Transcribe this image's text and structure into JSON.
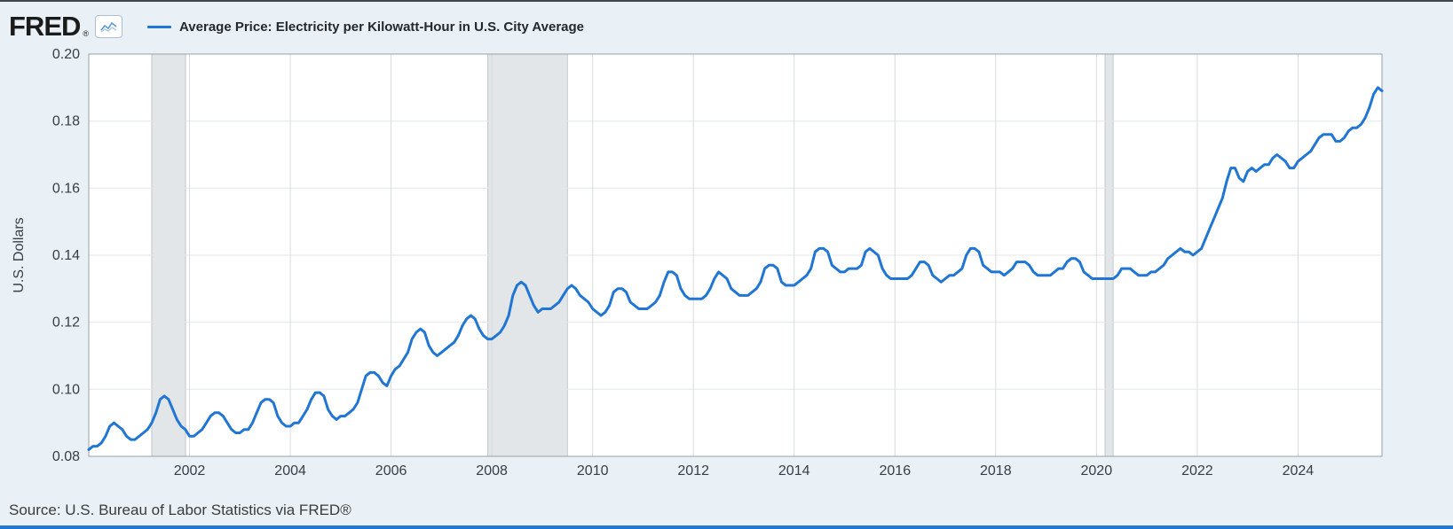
{
  "header": {
    "logo": "FRED",
    "registered": "®",
    "legend_label": "Average Price: Electricity per Kilowatt-Hour in U.S. City Average"
  },
  "footer": {
    "source": "Source: U.S. Bureau of Labor Statistics via FRED®"
  },
  "chart_data": {
    "type": "line",
    "title": "Average Price: Electricity per Kilowatt-Hour in U.S. City Average",
    "xlabel": "",
    "ylabel": "U.S. Dollars",
    "legend_position": "top",
    "grid": true,
    "line_color": "#2076d2",
    "band_color": "#e3e6e9",
    "xlim": [
      2000.0,
      2025.6667
    ],
    "ylim": [
      0.08,
      0.2
    ],
    "x_ticks": [
      2002,
      2004,
      2006,
      2008,
      2010,
      2012,
      2014,
      2016,
      2018,
      2020,
      2022,
      2024
    ],
    "y_ticks": [
      0.08,
      0.1,
      0.12,
      0.14,
      0.16,
      0.18,
      0.2
    ],
    "recession_bands": [
      [
        2001.25,
        2001.92
      ],
      [
        2007.92,
        2009.5
      ],
      [
        2020.17,
        2020.33
      ]
    ],
    "x_start": 2000.0,
    "x_step_years": 0.0833333,
    "values": [
      0.082,
      0.083,
      0.083,
      0.084,
      0.086,
      0.089,
      0.09,
      0.089,
      0.088,
      0.086,
      0.085,
      0.085,
      0.086,
      0.087,
      0.088,
      0.09,
      0.093,
      0.097,
      0.098,
      0.097,
      0.094,
      0.091,
      0.089,
      0.088,
      0.086,
      0.086,
      0.087,
      0.088,
      0.09,
      0.092,
      0.093,
      0.093,
      0.092,
      0.09,
      0.088,
      0.087,
      0.087,
      0.088,
      0.088,
      0.09,
      0.093,
      0.096,
      0.097,
      0.097,
      0.096,
      0.092,
      0.09,
      0.089,
      0.089,
      0.09,
      0.09,
      0.092,
      0.094,
      0.097,
      0.099,
      0.099,
      0.098,
      0.094,
      0.092,
      0.091,
      0.092,
      0.092,
      0.093,
      0.094,
      0.096,
      0.1,
      0.104,
      0.105,
      0.105,
      0.104,
      0.102,
      0.101,
      0.104,
      0.106,
      0.107,
      0.109,
      0.111,
      0.115,
      0.117,
      0.118,
      0.117,
      0.113,
      0.111,
      0.11,
      0.111,
      0.112,
      0.113,
      0.114,
      0.116,
      0.119,
      0.121,
      0.122,
      0.121,
      0.118,
      0.116,
      0.115,
      0.115,
      0.116,
      0.117,
      0.119,
      0.122,
      0.128,
      0.131,
      0.132,
      0.131,
      0.128,
      0.125,
      0.123,
      0.124,
      0.124,
      0.124,
      0.125,
      0.126,
      0.128,
      0.13,
      0.131,
      0.13,
      0.128,
      0.127,
      0.126,
      0.124,
      0.123,
      0.122,
      0.123,
      0.125,
      0.129,
      0.13,
      0.13,
      0.129,
      0.126,
      0.125,
      0.124,
      0.124,
      0.124,
      0.125,
      0.126,
      0.128,
      0.132,
      0.135,
      0.135,
      0.134,
      0.13,
      0.128,
      0.127,
      0.127,
      0.127,
      0.127,
      0.128,
      0.13,
      0.133,
      0.135,
      0.134,
      0.133,
      0.13,
      0.129,
      0.128,
      0.128,
      0.128,
      0.129,
      0.13,
      0.132,
      0.136,
      0.137,
      0.137,
      0.136,
      0.132,
      0.131,
      0.131,
      0.131,
      0.132,
      0.133,
      0.134,
      0.136,
      0.141,
      0.142,
      0.142,
      0.141,
      0.137,
      0.136,
      0.135,
      0.135,
      0.136,
      0.136,
      0.136,
      0.137,
      0.141,
      0.142,
      0.141,
      0.14,
      0.136,
      0.134,
      0.133,
      0.133,
      0.133,
      0.133,
      0.133,
      0.134,
      0.136,
      0.138,
      0.138,
      0.137,
      0.134,
      0.133,
      0.132,
      0.133,
      0.134,
      0.134,
      0.135,
      0.136,
      0.14,
      0.142,
      0.142,
      0.141,
      0.137,
      0.136,
      0.135,
      0.135,
      0.135,
      0.134,
      0.135,
      0.136,
      0.138,
      0.138,
      0.138,
      0.137,
      0.135,
      0.134,
      0.134,
      0.134,
      0.134,
      0.135,
      0.136,
      0.136,
      0.138,
      0.139,
      0.139,
      0.138,
      0.135,
      0.134,
      0.133,
      0.133,
      0.133,
      0.133,
      0.133,
      0.133,
      0.134,
      0.136,
      0.136,
      0.136,
      0.135,
      0.134,
      0.134,
      0.134,
      0.135,
      0.135,
      0.136,
      0.137,
      0.139,
      0.14,
      0.141,
      0.142,
      0.141,
      0.141,
      0.14,
      0.141,
      0.142,
      0.145,
      0.148,
      0.151,
      0.154,
      0.157,
      0.162,
      0.166,
      0.166,
      0.163,
      0.162,
      0.165,
      0.166,
      0.165,
      0.166,
      0.167,
      0.167,
      0.169,
      0.17,
      0.169,
      0.168,
      0.166,
      0.166,
      0.168,
      0.169,
      0.17,
      0.171,
      0.173,
      0.175,
      0.176,
      0.176,
      0.176,
      0.174,
      0.174,
      0.175,
      0.177,
      0.178,
      0.178,
      0.179,
      0.181,
      0.184,
      0.188,
      0.19,
      0.189
    ]
  }
}
